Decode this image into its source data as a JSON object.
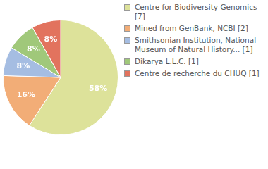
{
  "chart_data": {
    "type": "pie",
    "categories": [
      "Centre for Biodiversity Genomics [7]",
      "Mined from GenBank, NCBI [2]",
      "Smithsonian Institution, National Museum of Natural History... [1]",
      "Dikarya L.L.C. [1]",
      "Centre de recherche du CHUQ [1]"
    ],
    "values": [
      58,
      16,
      8,
      8,
      8
    ],
    "value_labels": [
      "58%",
      "16%",
      "8%",
      "8%",
      "8%"
    ],
    "colors": [
      "#dde29a",
      "#f2ad77",
      "#a5bde2",
      "#a0c87a",
      "#e2735e"
    ],
    "data_labels": true,
    "legend": "right"
  }
}
